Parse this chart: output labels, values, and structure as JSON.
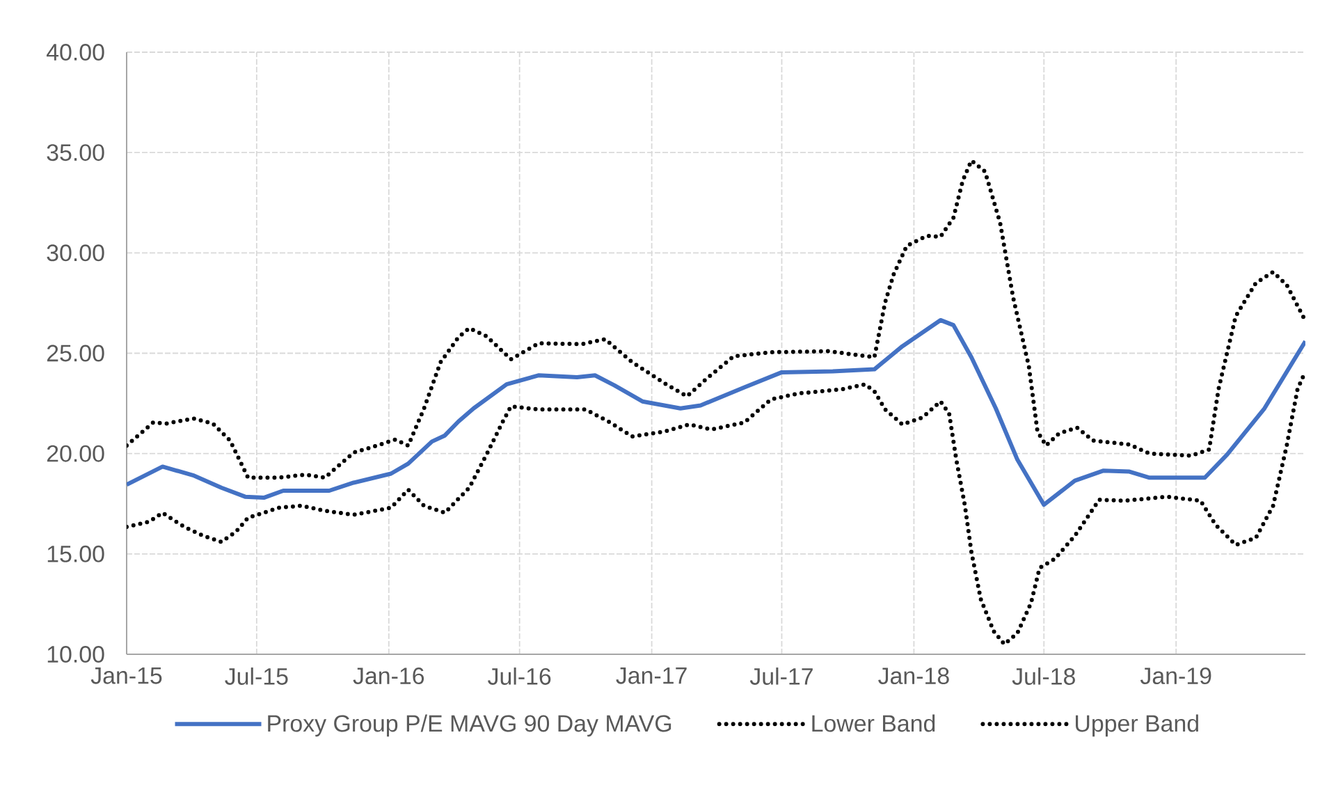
{
  "chart_data": {
    "type": "line",
    "xlim": [
      "2015-01-01",
      "2019-06-30"
    ],
    "xticks": [
      {
        "value": "2015-01-01",
        "label": "Jan-15"
      },
      {
        "value": "2015-07-01",
        "label": "Jul-15"
      },
      {
        "value": "2016-01-01",
        "label": "Jan-16"
      },
      {
        "value": "2016-07-01",
        "label": "Jul-16"
      },
      {
        "value": "2017-01-01",
        "label": "Jan-17"
      },
      {
        "value": "2017-07-01",
        "label": "Jul-17"
      },
      {
        "value": "2018-01-01",
        "label": "Jan-18"
      },
      {
        "value": "2018-07-01",
        "label": "Jul-18"
      },
      {
        "value": "2019-01-01",
        "label": "Jan-19"
      }
    ],
    "ylim": [
      10,
      40
    ],
    "yticks": [
      {
        "value": 10,
        "label": "10.00"
      },
      {
        "value": 15,
        "label": "15.00"
      },
      {
        "value": 20,
        "label": "20.00"
      },
      {
        "value": 25,
        "label": "25.00"
      },
      {
        "value": 30,
        "label": "30.00"
      },
      {
        "value": 35,
        "label": "35.00"
      },
      {
        "value": 40,
        "label": "40.00"
      }
    ],
    "grid": true,
    "legend": "bottom",
    "series": [
      {
        "name": "Proxy Group P/E MAVG 90 Day MAVG",
        "color": "#4472c4",
        "line_style": "solid",
        "x": [
          "2015-01-01",
          "2015-02-20",
          "2015-04-05",
          "2015-05-13",
          "2015-06-15",
          "2015-07-11",
          "2015-08-07",
          "2015-10-10",
          "2015-11-13",
          "2016-01-04",
          "2016-01-28",
          "2016-03-01",
          "2016-03-19",
          "2016-04-07",
          "2016-04-28",
          "2016-06-13",
          "2016-07-28",
          "2016-09-19",
          "2016-10-14",
          "2016-11-10",
          "2016-12-19",
          "2017-02-10",
          "2017-03-10",
          "2017-05-10",
          "2017-07-01",
          "2017-09-10",
          "2017-11-07",
          "2017-12-16",
          "2018-02-07",
          "2018-02-25",
          "2018-03-22",
          "2018-04-25",
          "2018-05-25",
          "2018-07-01",
          "2018-08-13",
          "2018-09-22",
          "2018-10-28",
          "2018-11-25",
          "2019-02-10",
          "2019-03-13",
          "2019-05-04",
          "2019-06-30"
        ],
        "values": [
          18.45,
          19.35,
          18.9,
          18.3,
          17.85,
          17.8,
          18.15,
          18.15,
          18.55,
          19.0,
          19.5,
          20.6,
          20.9,
          21.6,
          22.25,
          23.45,
          23.9,
          23.8,
          23.9,
          23.4,
          22.6,
          22.25,
          22.4,
          23.3,
          24.05,
          24.1,
          24.2,
          25.35,
          26.65,
          26.4,
          24.8,
          22.25,
          19.7,
          17.45,
          18.65,
          19.15,
          19.1,
          18.8,
          18.8,
          19.95,
          22.25,
          25.6
        ]
      },
      {
        "name": "Lower Band",
        "color": "#000000",
        "line_style": "dotted",
        "x": [
          "2015-01-01",
          "2015-02-01",
          "2015-02-20",
          "2015-03-22",
          "2015-04-18",
          "2015-05-13",
          "2015-06-02",
          "2015-06-19",
          "2015-08-01",
          "2015-09-01",
          "2015-10-04",
          "2015-11-13",
          "2016-01-04",
          "2016-01-28",
          "2016-02-19",
          "2016-03-19",
          "2016-04-22",
          "2016-05-16",
          "2016-06-07",
          "2016-06-19",
          "2016-07-28",
          "2016-10-01",
          "2016-11-04",
          "2016-12-05",
          "2017-01-19",
          "2017-02-22",
          "2017-03-25",
          "2017-05-10",
          "2017-06-16",
          "2017-07-25",
          "2017-09-22",
          "2017-10-25",
          "2017-11-07",
          "2017-11-22",
          "2017-12-16",
          "2018-01-13",
          "2018-02-07",
          "2018-02-19",
          "2018-03-01",
          "2018-03-13",
          "2018-03-22",
          "2018-04-04",
          "2018-04-22",
          "2018-05-07",
          "2018-05-25",
          "2018-06-13",
          "2018-06-25",
          "2018-07-16",
          "2018-08-13",
          "2018-09-16",
          "2018-10-22",
          "2018-12-19",
          "2019-02-04",
          "2019-02-25",
          "2019-03-25",
          "2019-04-22",
          "2019-05-16",
          "2019-06-04",
          "2019-06-19",
          "2019-06-30"
        ],
        "values": [
          16.35,
          16.6,
          17.05,
          16.35,
          15.9,
          15.6,
          16.1,
          16.8,
          17.3,
          17.4,
          17.15,
          16.95,
          17.3,
          18.2,
          17.4,
          17.05,
          18.3,
          19.95,
          21.55,
          22.35,
          22.2,
          22.2,
          21.55,
          20.85,
          21.1,
          21.45,
          21.2,
          21.55,
          22.7,
          23.0,
          23.2,
          23.45,
          23.1,
          22.2,
          21.45,
          21.8,
          22.6,
          22.0,
          19.7,
          17.4,
          15.1,
          12.75,
          11.15,
          10.5,
          11.05,
          12.55,
          14.3,
          14.75,
          15.9,
          17.7,
          17.65,
          17.85,
          17.65,
          16.45,
          15.45,
          15.8,
          17.4,
          20.4,
          23.2,
          24.1
        ]
      },
      {
        "name": "Upper Band",
        "color": "#000000",
        "line_style": "dotted",
        "x": [
          "2015-01-01",
          "2015-02-07",
          "2015-02-26",
          "2015-04-04",
          "2015-05-01",
          "2015-05-25",
          "2015-06-13",
          "2015-06-19",
          "2015-08-01",
          "2015-09-07",
          "2015-10-04",
          "2015-11-13",
          "2015-12-07",
          "2016-01-10",
          "2016-01-28",
          "2016-02-19",
          "2016-03-13",
          "2016-04-07",
          "2016-04-22",
          "2016-05-16",
          "2016-06-19",
          "2016-07-28",
          "2016-09-25",
          "2016-10-28",
          "2016-12-05",
          "2017-01-19",
          "2017-02-19",
          "2017-03-19",
          "2017-04-25",
          "2017-06-16",
          "2017-09-04",
          "2017-11-07",
          "2017-11-22",
          "2017-12-04",
          "2017-12-22",
          "2018-01-19",
          "2018-02-07",
          "2018-02-25",
          "2018-03-10",
          "2018-03-22",
          "2018-04-10",
          "2018-05-01",
          "2018-05-19",
          "2018-06-10",
          "2018-06-22",
          "2018-07-04",
          "2018-07-22",
          "2018-08-16",
          "2018-09-07",
          "2018-10-28",
          "2018-11-25",
          "2019-01-22",
          "2019-02-16",
          "2019-03-01",
          "2019-03-25",
          "2019-04-22",
          "2019-05-16",
          "2019-06-04",
          "2019-06-28"
        ],
        "values": [
          20.4,
          21.55,
          21.5,
          21.75,
          21.5,
          20.65,
          19.25,
          18.8,
          18.8,
          18.95,
          18.8,
          20.05,
          20.3,
          20.7,
          20.4,
          22.25,
          24.55,
          25.8,
          26.25,
          25.85,
          24.7,
          25.5,
          25.45,
          25.7,
          24.55,
          23.5,
          22.85,
          23.75,
          24.85,
          25.05,
          25.1,
          24.8,
          27.55,
          28.95,
          30.35,
          30.85,
          30.8,
          31.75,
          33.6,
          34.6,
          34.05,
          31.5,
          27.8,
          24.35,
          21.1,
          20.4,
          21.0,
          21.3,
          20.65,
          20.45,
          20.0,
          19.9,
          20.2,
          23.2,
          26.85,
          28.5,
          29.05,
          28.4,
          26.75
        ]
      }
    ]
  }
}
